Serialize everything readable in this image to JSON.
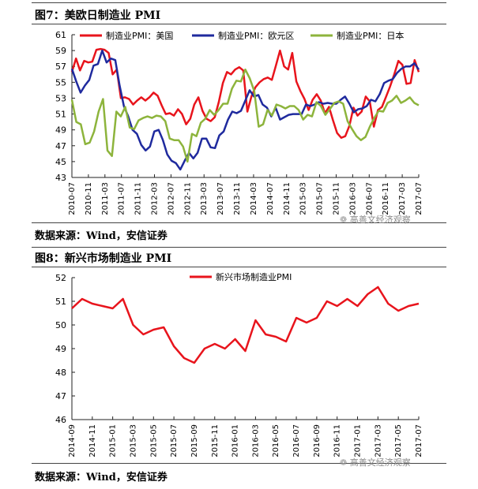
{
  "figure7": {
    "title": "图7：美欧日制造业 PMI",
    "source": "数据来源：Wind，安信证券",
    "watermark": "高善文经济观察"
  },
  "figure8": {
    "title": "图8：新兴市场制造业 PMI",
    "source": "数据来源：Wind，安信证券",
    "watermark": "高善文经济观察"
  },
  "chart_data": [
    {
      "type": "line",
      "ylim": [
        43,
        61
      ],
      "yticks": [
        43,
        45,
        47,
        49,
        51,
        53,
        55,
        57,
        59,
        61
      ],
      "x_tick_labels": [
        "2010-07",
        "2010-11",
        "2011-03",
        "2011-07",
        "2011-11",
        "2012-03",
        "2012-07",
        "2012-11",
        "2013-03",
        "2013-07",
        "2013-11",
        "2014-03",
        "2014-07",
        "2014-11",
        "2015-03",
        "2015-07",
        "2015-11",
        "2016-03",
        "2016-07",
        "2016-11",
        "2017-03",
        "2017-07"
      ],
      "x_start": "2010-07",
      "x_end": "2017-07",
      "legend_position": "top",
      "grid": false,
      "series": [
        {
          "name": "制造业PMI：美国",
          "color": "#e8141c",
          "values": [
            56.3,
            58.0,
            56.5,
            57.7,
            57.5,
            57.6,
            59.1,
            59.2,
            59.1,
            58.7,
            56.0,
            56.6,
            53.0,
            53.1,
            52.9,
            52.2,
            52.7,
            53.1,
            52.7,
            53.1,
            53.7,
            53.3,
            52.1,
            51.0,
            51.1,
            50.8,
            51.6,
            51.0,
            49.7,
            50.4,
            52.2,
            53.1,
            51.4,
            50.4,
            50.1,
            50.6,
            52.5,
            54.9,
            56.3,
            56.0,
            56.6,
            56.9,
            56.5,
            51.3,
            53.2,
            54.4,
            55.0,
            55.4,
            55.6,
            55.3,
            57.1,
            59.0,
            57.0,
            56.6,
            58.7,
            55.1,
            53.9,
            52.9,
            51.5,
            52.8,
            53.5,
            52.7,
            51.1,
            51.9,
            50.2,
            48.6,
            48.0,
            48.2,
            49.5,
            51.8,
            50.8,
            51.3,
            53.2,
            52.6,
            49.4,
            51.5,
            51.9,
            53.2,
            54.5,
            56.0,
            57.7,
            57.2,
            54.8,
            54.9,
            57.8,
            56.3
          ]
        },
        {
          "name": "制造业PMI：欧元区",
          "color": "#1f2a9e",
          "values": [
            56.7,
            55.1,
            53.7,
            54.6,
            55.3,
            57.1,
            57.3,
            59.0,
            57.5,
            58.0,
            57.8,
            54.6,
            52.0,
            50.7,
            49.0,
            48.5,
            47.1,
            46.4,
            46.9,
            48.8,
            49.0,
            47.7,
            45.9,
            45.1,
            44.8,
            44.0,
            45.1,
            46.1,
            45.4,
            46.1,
            47.9,
            47.9,
            46.8,
            46.7,
            48.3,
            48.8,
            50.3,
            51.3,
            51.1,
            51.4,
            52.7,
            54.0,
            53.2,
            53.4,
            52.2,
            51.8,
            50.7,
            51.8,
            50.3,
            50.6,
            50.9,
            51.0,
            51.0,
            51.0,
            52.2,
            52.0,
            52.2,
            52.5,
            52.3,
            52.4,
            52.3,
            52.3,
            52.8,
            53.2,
            52.3,
            51.2,
            51.6,
            51.7,
            52.0,
            52.8,
            52.6,
            53.5,
            54.9,
            55.2,
            55.4,
            56.2,
            56.7,
            57.0,
            57.0,
            57.4,
            56.6
          ]
        },
        {
          "name": "制造业PMI：日本",
          "color": "#8db43c",
          "values": [
            52.8,
            50.0,
            49.7,
            47.2,
            47.4,
            48.8,
            51.3,
            52.9,
            46.4,
            45.7,
            51.3,
            50.7,
            51.9,
            49.3,
            49.1,
            50.2,
            50.5,
            50.7,
            50.5,
            50.8,
            50.7,
            50.1,
            47.9,
            47.7,
            47.7,
            46.9,
            45.0,
            48.5,
            48.2,
            49.9,
            50.4,
            51.5,
            50.9,
            51.5,
            52.3,
            52.3,
            54.2,
            55.2,
            55.1,
            56.6,
            55.5,
            53.9,
            49.4,
            49.7,
            51.5,
            50.8,
            52.2,
            52.0,
            51.7,
            52.0,
            52.0,
            51.5,
            50.3,
            50.9,
            50.7,
            52.5,
            52.0,
            50.9,
            51.6,
            52.4,
            52.6,
            52.3,
            50.1,
            49.1,
            48.2,
            47.7,
            48.1,
            49.4,
            50.5,
            51.4,
            51.3,
            52.4,
            52.7,
            53.3,
            52.4,
            52.7,
            53.1,
            52.4,
            52.1
          ]
        }
      ]
    },
    {
      "type": "line",
      "ylim": [
        46,
        52
      ],
      "yticks": [
        46,
        47,
        48,
        49,
        50,
        51,
        52
      ],
      "x_tick_labels": [
        "2014-09",
        "2014-11",
        "2015-01",
        "2015-03",
        "2015-05",
        "2015-07",
        "2015-09",
        "2015-11",
        "2016-01",
        "2016-03",
        "2016-05",
        "2016-07",
        "2016-09",
        "2016-11",
        "2017-01",
        "2017-03",
        "2017-05",
        "2017-07"
      ],
      "legend_position": "top-left",
      "grid": false,
      "series": [
        {
          "name": "新兴市场制造业PMI",
          "color": "#e8141c",
          "values": [
            50.7,
            51.1,
            50.9,
            50.8,
            50.7,
            51.1,
            50.0,
            49.6,
            49.8,
            49.9,
            49.1,
            48.6,
            48.4,
            49.0,
            49.2,
            49.0,
            49.4,
            48.9,
            50.2,
            49.6,
            49.5,
            49.3,
            50.3,
            50.1,
            50.3,
            51.0,
            50.8,
            51.1,
            50.8,
            51.3,
            51.6,
            50.9,
            50.6,
            50.8,
            50.9
          ]
        }
      ]
    }
  ]
}
